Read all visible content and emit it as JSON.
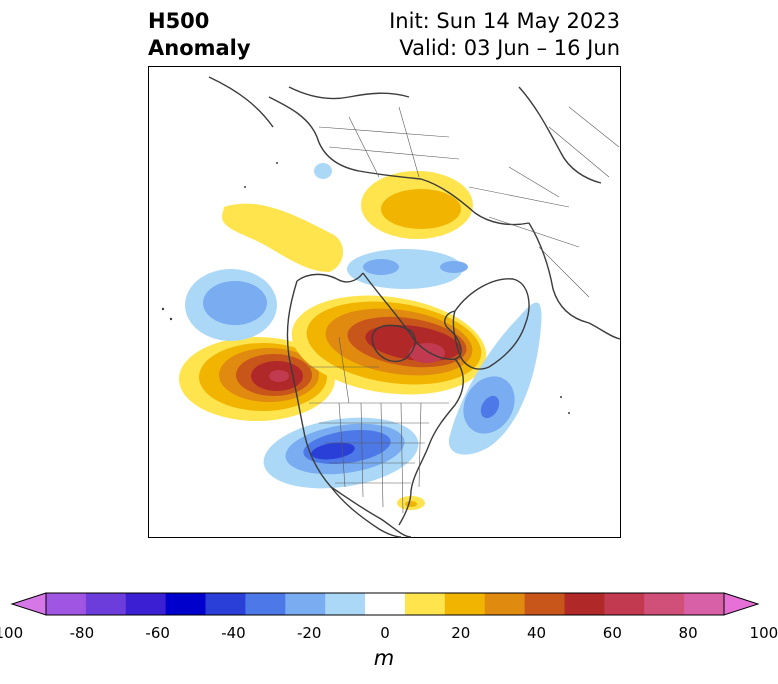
{
  "title": {
    "line1": "H500",
    "line2": "Anomaly"
  },
  "run": {
    "init": "Init: Sun 14 May 2023",
    "valid": "Valid: 03 Jun – 16 Jun"
  },
  "colorbar": {
    "unit": "m",
    "min": -100,
    "max": 100,
    "step": 10,
    "tick_labels": [
      "-100",
      "-80",
      "-60",
      "-40",
      "-20",
      "0",
      "20",
      "40",
      "60",
      "80",
      "100"
    ],
    "tick_values": [
      -100,
      -80,
      -60,
      -40,
      -20,
      0,
      20,
      40,
      60,
      80,
      100
    ],
    "extend": "both",
    "colors": [
      "#d677e8",
      "#a055e3",
      "#6c3ddb",
      "#3a1fd3",
      "#0000cc",
      "#2a3fd8",
      "#4d78e8",
      "#79acf0",
      "#acd8f8",
      "#ffffff",
      "#ffe44d",
      "#f1b400",
      "#e08a10",
      "#c8561a",
      "#b02828",
      "#c23a50",
      "#d0507a",
      "#d860a6",
      "#e670d6"
    ],
    "under_color": "#d677e8",
    "over_color": "#e670d6"
  },
  "map": {
    "projection": "north-polar-stereographic",
    "region": "North America / Arctic / North Pacific / North Atlantic",
    "anomalies": [
      {
        "region": "Pacific Northwest / British Columbia",
        "sign": "positive",
        "peak_m": 70
      },
      {
        "region": "Hudson Bay / Quebec",
        "sign": "positive",
        "peak_m": 70
      },
      {
        "region": "Central Arctic / Siberia",
        "sign": "positive",
        "peak_m": 30
      },
      {
        "region": "North Pacific / Aleutians",
        "sign": "positive",
        "peak_m": 20
      },
      {
        "region": "Central United States",
        "sign": "negative",
        "peak_m": -50
      },
      {
        "region": "Western Atlantic",
        "sign": "negative",
        "peak_m": -40
      },
      {
        "region": "Gulf of Alaska / North Pacific",
        "sign": "negative",
        "peak_m": -30
      },
      {
        "region": "Arctic Ocean",
        "sign": "negative",
        "peak_m": -30
      },
      {
        "region": "Northern Siberia",
        "sign": "negative",
        "peak_m": -20
      },
      {
        "region": "Caribbean",
        "sign": "positive",
        "peak_m": 20
      }
    ]
  }
}
